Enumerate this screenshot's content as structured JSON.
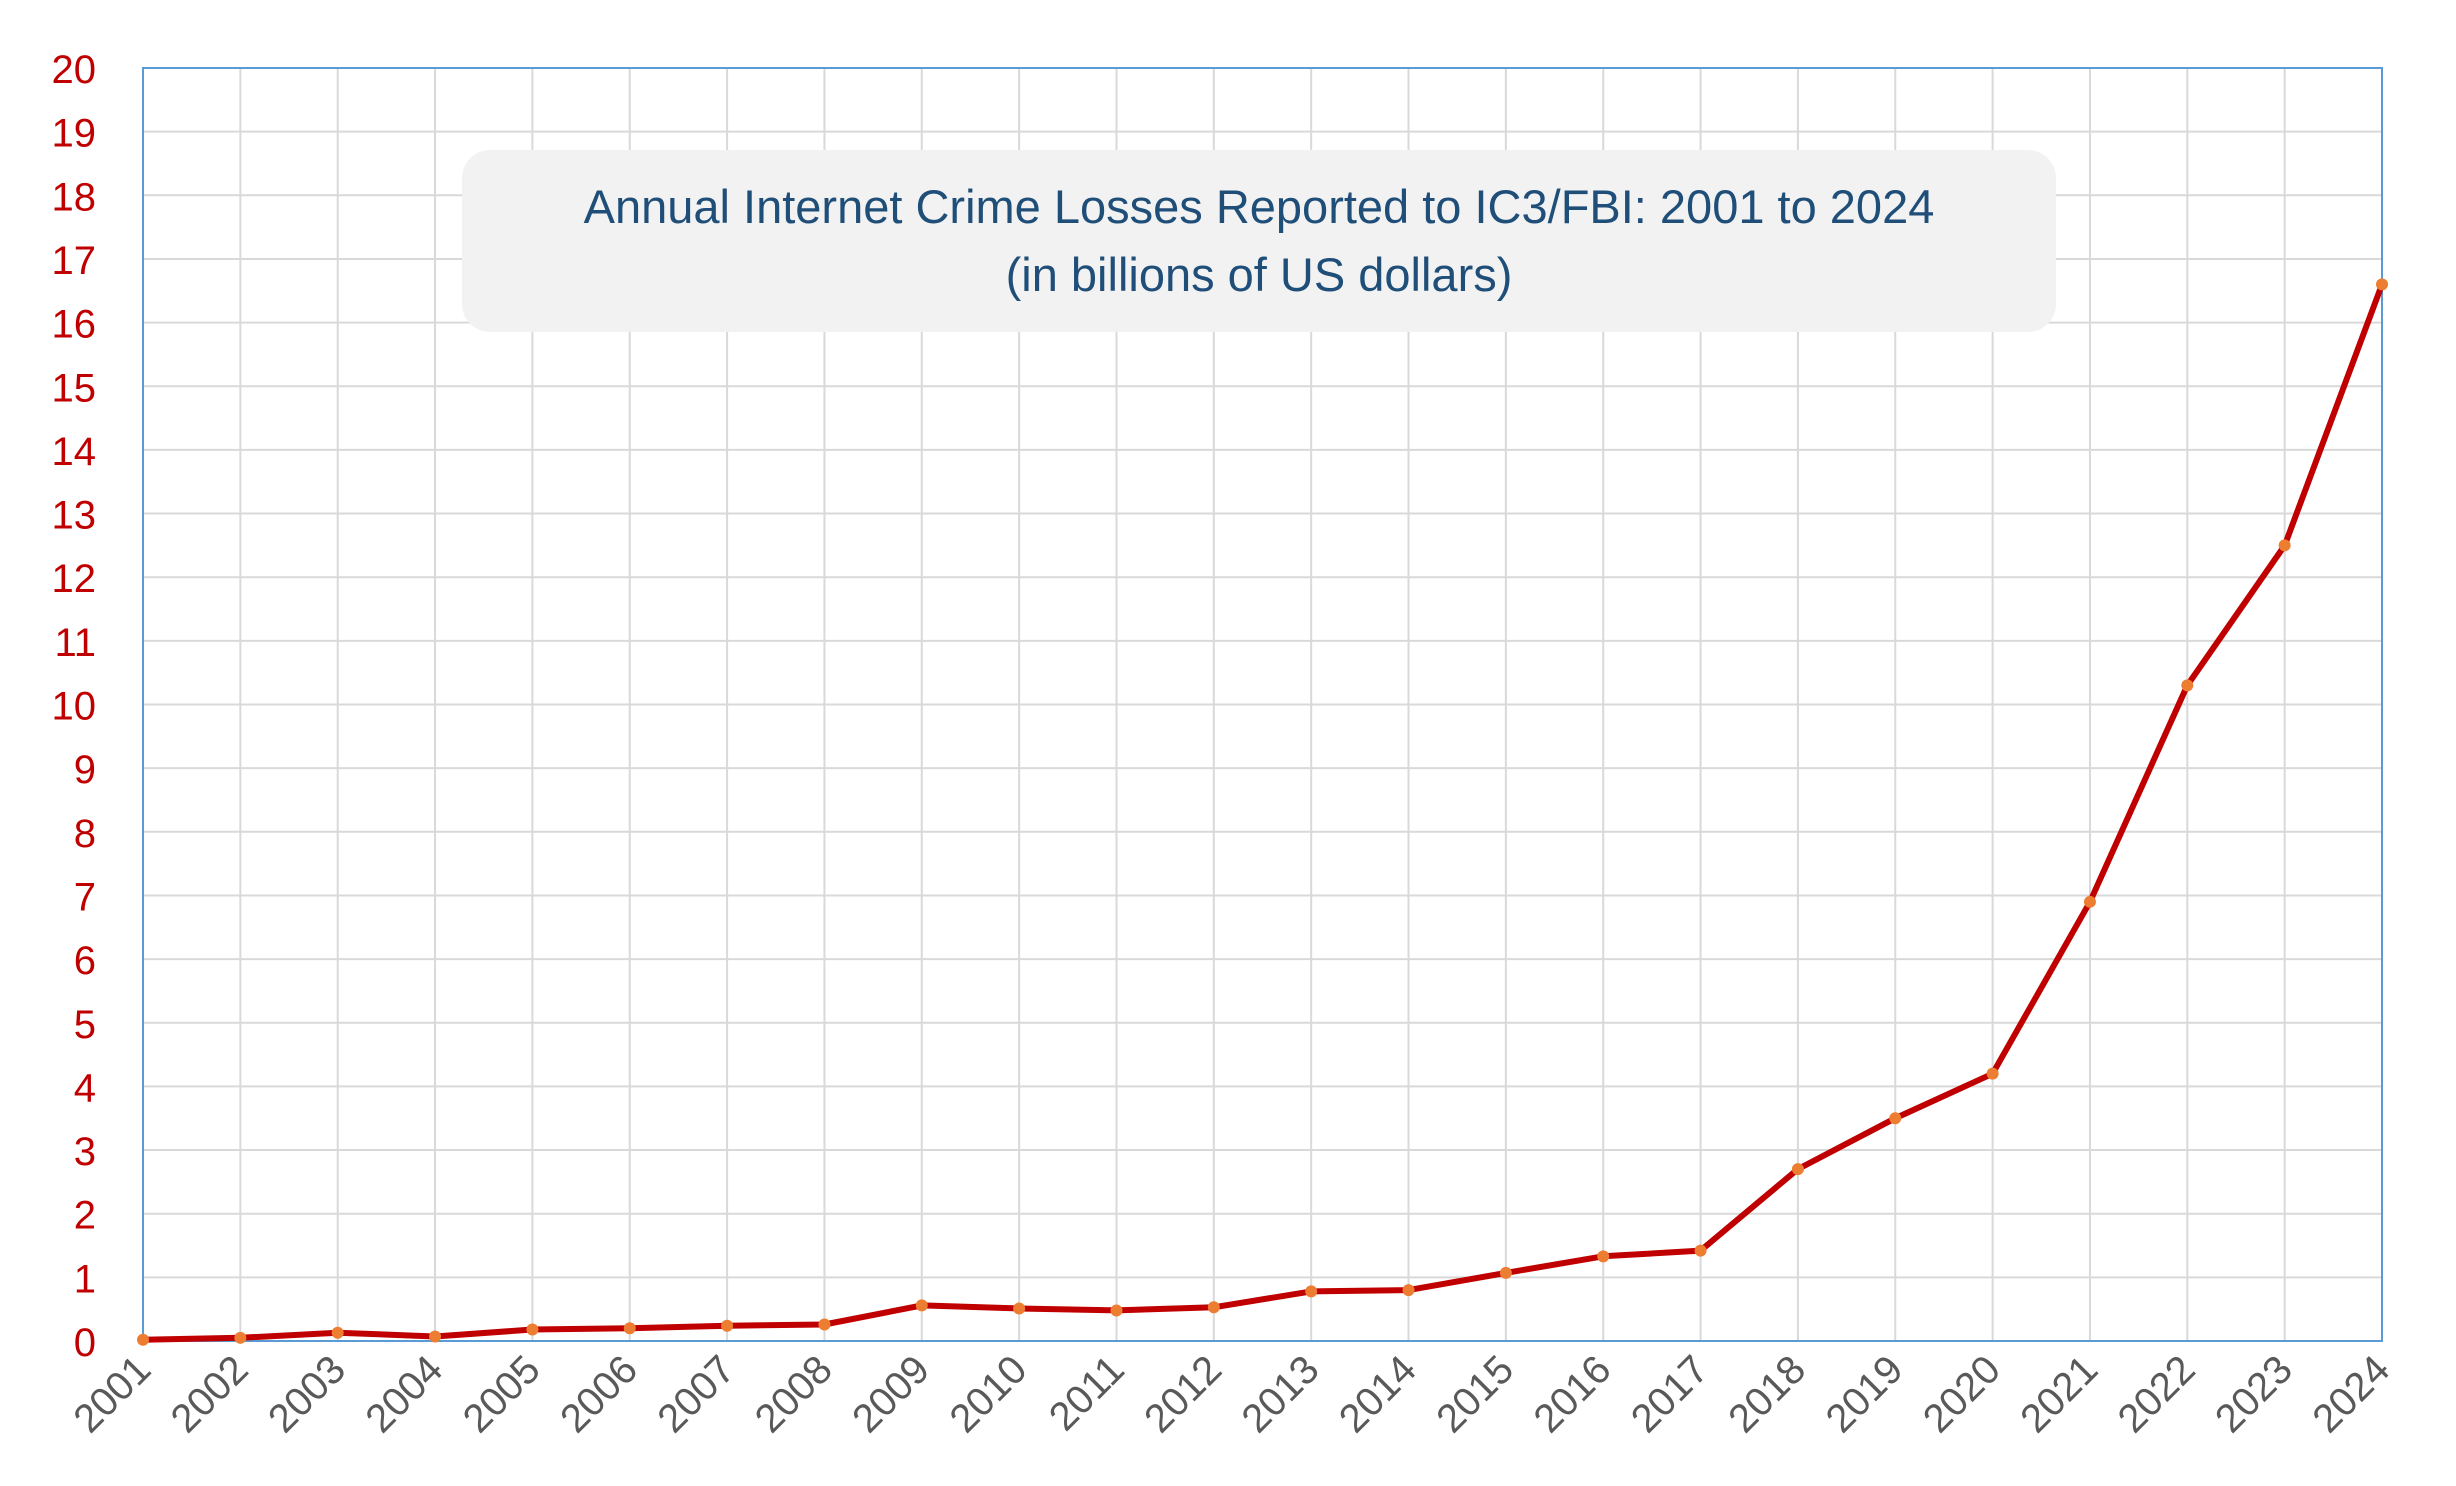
{
  "chart_data": {
    "type": "line",
    "title": "Annual Internet Crime Losses Reported to IC3/FBI: 2001 to 2024",
    "subtitle": "(in billions of US dollars)",
    "xlabel": "",
    "ylabel": "",
    "ylim": [
      0,
      20
    ],
    "yticks": [
      0,
      1,
      2,
      3,
      4,
      5,
      6,
      7,
      8,
      9,
      10,
      11,
      12,
      13,
      14,
      15,
      16,
      17,
      18,
      19,
      20
    ],
    "grid": true,
    "legend": "none",
    "x": [
      "2001",
      "2002",
      "2003",
      "2004",
      "2005",
      "2006",
      "2007",
      "2008",
      "2009",
      "2010",
      "2011",
      "2012",
      "2013",
      "2014",
      "2015",
      "2016",
      "2017",
      "2018",
      "2019",
      "2020",
      "2021",
      "2022",
      "2023",
      "2024"
    ],
    "series": [
      {
        "values": [
          0.02,
          0.05,
          0.13,
          0.07,
          0.18,
          0.2,
          0.24,
          0.26,
          0.56,
          0.51,
          0.48,
          0.53,
          0.78,
          0.8,
          1.07,
          1.33,
          1.42,
          2.7,
          3.5,
          4.2,
          6.9,
          10.3,
          12.5,
          16.6
        ],
        "color": "#c00000",
        "marker_color": "#ed7d31"
      }
    ],
    "colors": {
      "axis_label": "#c00000",
      "x_tick_label": "#595959",
      "grid": "#d9d9d9",
      "plot_border": "#5b9bd5",
      "title": "#1f4e79",
      "title_box": "#f2f2f2"
    }
  }
}
